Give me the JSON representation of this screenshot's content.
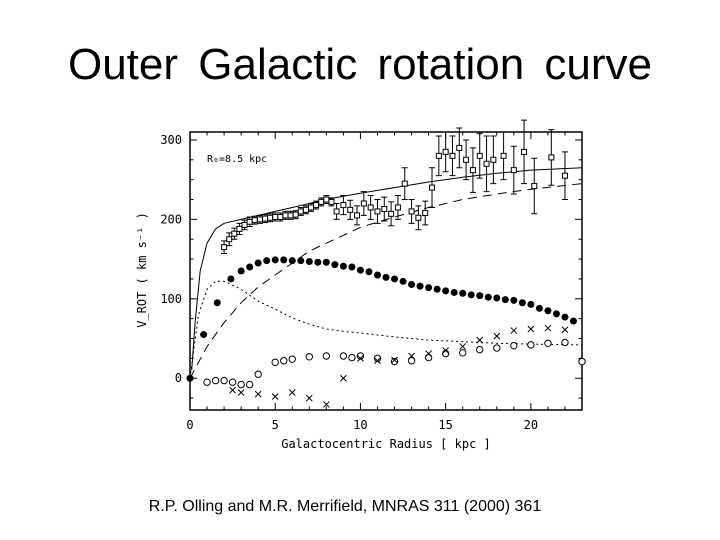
{
  "slide": {
    "title": "Outer  Galactic  rotation  curve",
    "citation": "R.P. Olling and M.R. Merrifield, MNRAS 311 (2000) 361"
  },
  "chart_data": {
    "type": "scatter",
    "xlabel": "Galactocentric Radius [ kpc ]",
    "ylabel": "V_ROT ( km s⁻¹ )",
    "xlim": [
      0,
      23
    ],
    "ylim": [
      -40,
      310
    ],
    "xticks": [
      0,
      5,
      10,
      15,
      20
    ],
    "yticks": [
      0,
      100,
      200,
      300
    ],
    "annotation": "R₀=8.5 kpc",
    "series": [
      {
        "name": "total-model",
        "kind": "line-solid",
        "x": [
          0.1,
          0.3,
          0.6,
          1,
          1.5,
          2,
          3,
          4,
          5,
          6,
          7,
          8,
          9,
          10,
          12,
          14,
          16,
          18,
          20,
          23
        ],
        "y": [
          10,
          70,
          135,
          170,
          188,
          195,
          200,
          205,
          210,
          215,
          220,
          225,
          229,
          233,
          240,
          247,
          253,
          258,
          262,
          265
        ]
      },
      {
        "name": "halo-model",
        "kind": "line-dashed",
        "x": [
          0,
          1,
          2,
          3,
          4,
          5,
          6,
          7,
          8,
          9,
          10,
          12,
          14,
          16,
          18,
          20,
          23
        ],
        "y": [
          0,
          40,
          70,
          95,
          115,
          130,
          145,
          160,
          170,
          180,
          190,
          203,
          215,
          225,
          232,
          238,
          245
        ]
      },
      {
        "name": "bulge-model",
        "kind": "line-dotted",
        "x": [
          0,
          0.5,
          1,
          1.5,
          2,
          2.5,
          3,
          4,
          5,
          6,
          7,
          8,
          9,
          10,
          12,
          14,
          16,
          18,
          20,
          23
        ],
        "y": [
          0,
          80,
          112,
          122,
          122,
          117,
          112,
          97,
          87,
          76,
          68,
          62,
          59,
          57,
          52,
          48,
          46,
          44,
          43,
          42
        ]
      },
      {
        "name": "disk-stars",
        "kind": "filled-circle",
        "x": [
          0,
          0.8,
          1.6,
          2.4,
          3,
          3.5,
          4,
          4.5,
          5,
          5.5,
          6,
          6.5,
          7,
          7.5,
          8,
          8.5,
          9,
          9.5,
          10,
          10.5,
          11,
          11.5,
          12,
          12.5,
          13,
          13.5,
          14,
          14.5,
          15,
          15.5,
          16,
          16.5,
          17,
          17.5,
          18,
          18.5,
          19,
          19.5,
          20,
          20.5,
          21,
          21.5,
          22,
          22.5
        ],
        "y": [
          0,
          55,
          95,
          125,
          135,
          140,
          145,
          148,
          149,
          149,
          148,
          148,
          147,
          146,
          146,
          143,
          141,
          140,
          136,
          134,
          130,
          127,
          125,
          122,
          118,
          116,
          114,
          112,
          110,
          108,
          107,
          105,
          104,
          102,
          101,
          99,
          98,
          95,
          93,
          88,
          85,
          81,
          77,
          72
        ]
      },
      {
        "name": "gas-circles",
        "kind": "open-circle",
        "x": [
          1,
          1.5,
          2,
          2.5,
          3,
          3.5,
          4,
          5,
          5.5,
          6,
          7,
          8,
          9,
          9.5,
          10,
          11,
          12,
          13,
          14,
          15,
          16,
          17,
          18,
          19,
          20,
          21,
          22,
          23
        ],
        "y": [
          -5,
          -3,
          -3,
          -5,
          -8,
          -8,
          5,
          20,
          22,
          24,
          27,
          28,
          28,
          26,
          28,
          25,
          21,
          22,
          26,
          31,
          32,
          36,
          38,
          41,
          42,
          44,
          45,
          21
        ]
      },
      {
        "name": "gas-crosses",
        "kind": "cross",
        "x": [
          2.5,
          3,
          4,
          5,
          6,
          7,
          8,
          9,
          10,
          11,
          12,
          13,
          14,
          15,
          16,
          17,
          18,
          19,
          20,
          21,
          22
        ],
        "y": [
          -15,
          -18,
          -20,
          -23,
          -18,
          -25,
          -33,
          0,
          25,
          22,
          23,
          28,
          31,
          35,
          40,
          48,
          53,
          60,
          62,
          63,
          61
        ]
      },
      {
        "name": "observed-inner",
        "kind": "open-square-errorbar",
        "x": [
          2,
          2.3,
          2.6,
          2.9,
          3.2,
          3.5,
          3.8,
          4.1,
          4.4,
          4.7,
          5,
          5.3,
          5.6,
          5.9,
          6.2,
          6.5,
          6.8,
          7.1,
          7.4,
          7.7,
          8,
          8.3
        ],
        "y": [
          165,
          175,
          182,
          188,
          193,
          197,
          199,
          200,
          201,
          202,
          203,
          203,
          205,
          205,
          206,
          210,
          212,
          215,
          218,
          222,
          225,
          222
        ],
        "err": [
          8,
          8,
          7,
          7,
          6,
          6,
          5,
          5,
          5,
          5,
          5,
          5,
          5,
          5,
          5,
          5,
          5,
          5,
          5,
          5,
          5,
          5
        ]
      },
      {
        "name": "observed-outer",
        "kind": "open-square-errorbar",
        "x": [
          8.6,
          9,
          9.4,
          9.8,
          10.2,
          10.6,
          11,
          11.4,
          11.8,
          12.2,
          12.6,
          13,
          13.4,
          13.8,
          14.2,
          14.6,
          15,
          15.4,
          15.8,
          16.2,
          16.6,
          17,
          17.4,
          17.8,
          18.4,
          19,
          19.6,
          20.2,
          21.2,
          22
        ],
        "y": [
          210,
          218,
          212,
          205,
          220,
          215,
          210,
          213,
          207,
          215,
          245,
          210,
          202,
          208,
          240,
          280,
          285,
          280,
          290,
          275,
          262,
          280,
          270,
          275,
          280,
          262,
          285,
          242,
          278,
          255
        ],
        "err": [
          10,
          12,
          12,
          12,
          15,
          15,
          15,
          15,
          15,
          15,
          20,
          15,
          15,
          15,
          25,
          25,
          25,
          25,
          25,
          25,
          28,
          28,
          35,
          30,
          30,
          30,
          40,
          35,
          35,
          30
        ]
      }
    ]
  }
}
